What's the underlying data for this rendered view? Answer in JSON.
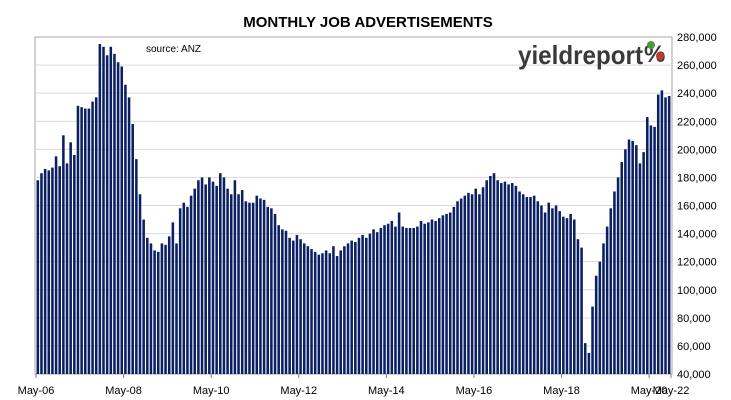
{
  "chart_data": {
    "type": "bar",
    "title": "MONTHLY JOB ADVERTISEMENTS",
    "source": "source: ANZ",
    "xlabel": "",
    "ylabel": "",
    "ylim": [
      40000,
      280000
    ],
    "y_ticks": [
      "40,000",
      "60,000",
      "80,000",
      "100,000",
      "120,000",
      "140,000",
      "160,000",
      "180,000",
      "200,000",
      "220,000",
      "240,000",
      "260,000",
      "280,000"
    ],
    "x_tick_labels": [
      "May-06",
      "May-08",
      "May-10",
      "May-12",
      "May-14",
      "May-16",
      "May-18",
      "May-20",
      "May-22"
    ],
    "first_period": "May-06",
    "frequency": "monthly",
    "grid": true,
    "bar_color": "#0b1f63",
    "series": [
      {
        "values": [
          178000,
          183000,
          186000,
          185000,
          187000,
          195000,
          188000,
          210000,
          190000,
          205000,
          196000,
          231000,
          230000,
          229000,
          229000,
          234000,
          237000,
          275000,
          273000,
          267000,
          273000,
          268000,
          262000,
          259000,
          246000,
          237000,
          218000,
          193000,
          168000,
          150000,
          137000,
          133000,
          128000,
          127000,
          133000,
          132000,
          138000,
          148000,
          133000,
          158000,
          162000,
          159000,
          167000,
          172000,
          178000,
          180000,
          175000,
          180000,
          177000,
          174000,
          183000,
          180000,
          172000,
          168000,
          178000,
          168000,
          171000,
          163000,
          162000,
          162000,
          167000,
          165000,
          164000,
          159000,
          158000,
          154000,
          146000,
          143000,
          142000,
          137000,
          135000,
          139000,
          136000,
          133000,
          131000,
          129000,
          127000,
          125000,
          126000,
          128000,
          126000,
          131000,
          124000,
          128000,
          131000,
          133000,
          135000,
          134000,
          137000,
          139000,
          137000,
          140000,
          143000,
          141000,
          144000,
          146000,
          147000,
          149000,
          145000,
          155000,
          145000,
          144000,
          144000,
          144000,
          145000,
          149000,
          147000,
          148000,
          150000,
          149000,
          151000,
          153000,
          154000,
          155000,
          159000,
          163000,
          165000,
          167000,
          169000,
          168000,
          172000,
          168000,
          173000,
          178000,
          181000,
          183000,
          178000,
          176000,
          177000,
          175000,
          176000,
          174000,
          170000,
          168000,
          166000,
          166000,
          167000,
          163000,
          160000,
          155000,
          162000,
          158000,
          160000,
          156000,
          152000,
          151000,
          154000,
          150000,
          136000,
          130000,
          62000,
          55000,
          88000,
          110000,
          120000,
          133000,
          145000,
          158000,
          170000,
          180000,
          191000,
          200000,
          207000,
          206000,
          203000,
          190000,
          198000,
          223000,
          217000,
          216000,
          239000,
          242000,
          237000,
          238000
        ]
      }
    ]
  },
  "logo": {
    "main": "yieldreport",
    "pct": "%"
  },
  "colors": {
    "bar": "#0b1f63",
    "grid": "#d9d9d9",
    "axis": "#808080",
    "logo_green": "#4a9a3a",
    "logo_red": "#c0392b"
  }
}
